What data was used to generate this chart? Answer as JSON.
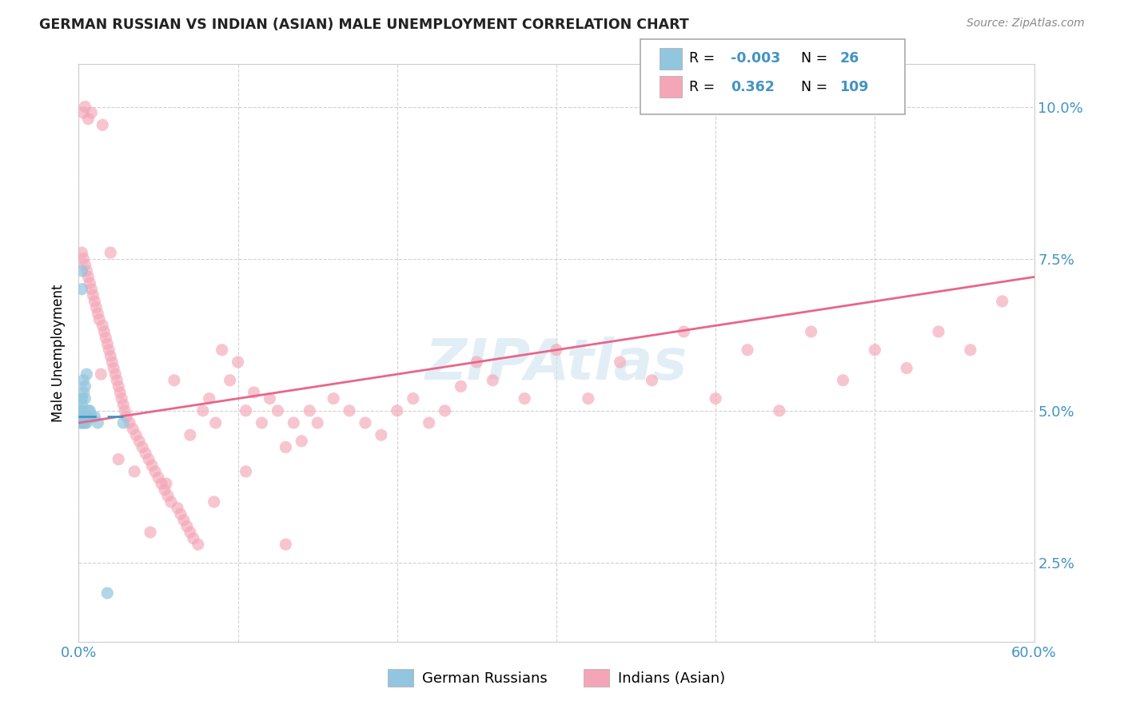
{
  "title": "GERMAN RUSSIAN VS INDIAN (ASIAN) MALE UNEMPLOYMENT CORRELATION CHART",
  "source": "Source: ZipAtlas.com",
  "ylabel": "Male Unemployment",
  "ytick_labels": [
    "2.5%",
    "5.0%",
    "7.5%",
    "10.0%"
  ],
  "ytick_values": [
    0.025,
    0.05,
    0.075,
    0.1
  ],
  "xlim": [
    0.0,
    0.6
  ],
  "ylim": [
    0.012,
    0.107
  ],
  "legend_R_blue": "-0.003",
  "legend_N_blue": "26",
  "legend_R_pink": "0.362",
  "legend_N_pink": "109",
  "color_blue": "#92c5de",
  "color_pink": "#f4a6b8",
  "color_blue_line": "#4393c3",
  "color_pink_line": "#e8668a",
  "color_blue_text": "#4393c3",
  "watermark_color": "#d0e4f0",
  "background_color": "#ffffff",
  "gr_x": [
    0.001,
    0.001,
    0.001,
    0.002,
    0.002,
    0.002,
    0.002,
    0.002,
    0.002,
    0.003,
    0.003,
    0.003,
    0.003,
    0.004,
    0.004,
    0.004,
    0.005,
    0.005,
    0.006,
    0.007,
    0.007,
    0.008,
    0.01,
    0.012,
    0.018,
    0.028
  ],
  "gr_y": [
    0.05,
    0.049,
    0.048,
    0.073,
    0.07,
    0.052,
    0.051,
    0.05,
    0.048,
    0.055,
    0.053,
    0.049,
    0.048,
    0.054,
    0.052,
    0.048,
    0.056,
    0.048,
    0.05,
    0.05,
    0.049,
    0.049,
    0.049,
    0.048,
    0.02,
    0.048
  ],
  "ind_x": [
    0.002,
    0.003,
    0.004,
    0.005,
    0.005,
    0.006,
    0.007,
    0.008,
    0.009,
    0.01,
    0.011,
    0.012,
    0.013,
    0.014,
    0.015,
    0.016,
    0.017,
    0.018,
    0.019,
    0.02,
    0.021,
    0.022,
    0.023,
    0.024,
    0.025,
    0.026,
    0.027,
    0.028,
    0.029,
    0.03,
    0.032,
    0.034,
    0.036,
    0.038,
    0.04,
    0.042,
    0.044,
    0.046,
    0.048,
    0.05,
    0.052,
    0.054,
    0.056,
    0.058,
    0.06,
    0.062,
    0.064,
    0.066,
    0.068,
    0.07,
    0.072,
    0.075,
    0.078,
    0.082,
    0.086,
    0.09,
    0.095,
    0.1,
    0.105,
    0.11,
    0.115,
    0.12,
    0.125,
    0.13,
    0.135,
    0.14,
    0.145,
    0.15,
    0.16,
    0.17,
    0.18,
    0.19,
    0.2,
    0.21,
    0.22,
    0.23,
    0.24,
    0.25,
    0.26,
    0.28,
    0.3,
    0.32,
    0.34,
    0.36,
    0.38,
    0.4,
    0.42,
    0.44,
    0.46,
    0.48,
    0.5,
    0.52,
    0.54,
    0.56,
    0.58,
    0.003,
    0.004,
    0.006,
    0.008,
    0.015,
    0.02,
    0.025,
    0.035,
    0.045,
    0.055,
    0.07,
    0.085,
    0.105,
    0.13
  ],
  "ind_y": [
    0.076,
    0.075,
    0.074,
    0.073,
    0.049,
    0.072,
    0.071,
    0.07,
    0.069,
    0.068,
    0.067,
    0.066,
    0.065,
    0.056,
    0.064,
    0.063,
    0.062,
    0.061,
    0.06,
    0.059,
    0.058,
    0.057,
    0.056,
    0.055,
    0.054,
    0.053,
    0.052,
    0.051,
    0.05,
    0.049,
    0.048,
    0.047,
    0.046,
    0.045,
    0.044,
    0.043,
    0.042,
    0.041,
    0.04,
    0.039,
    0.038,
    0.037,
    0.036,
    0.035,
    0.055,
    0.034,
    0.033,
    0.032,
    0.031,
    0.03,
    0.029,
    0.028,
    0.05,
    0.052,
    0.048,
    0.06,
    0.055,
    0.058,
    0.05,
    0.053,
    0.048,
    0.052,
    0.05,
    0.044,
    0.048,
    0.045,
    0.05,
    0.048,
    0.052,
    0.05,
    0.048,
    0.046,
    0.05,
    0.052,
    0.048,
    0.05,
    0.054,
    0.058,
    0.055,
    0.052,
    0.06,
    0.052,
    0.058,
    0.055,
    0.063,
    0.052,
    0.06,
    0.05,
    0.063,
    0.055,
    0.06,
    0.057,
    0.063,
    0.06,
    0.068,
    0.099,
    0.1,
    0.098,
    0.099,
    0.097,
    0.076,
    0.042,
    0.04,
    0.03,
    0.038,
    0.046,
    0.035,
    0.04,
    0.028
  ],
  "pink_line_x": [
    0.0,
    0.6
  ],
  "pink_line_y": [
    0.048,
    0.072
  ],
  "blue_line_x": [
    0.0,
    0.028
  ],
  "blue_line_y": [
    0.049,
    0.049
  ]
}
